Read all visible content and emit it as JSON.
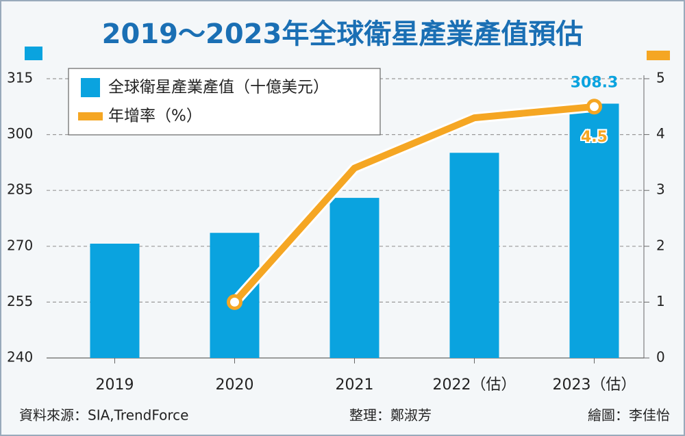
{
  "chart_data": {
    "type": "bar_line",
    "title": "2019～2023年全球衛星產業產值預估",
    "categories": [
      "2019",
      "2020",
      "2021",
      "2022（估）",
      "2023（估）"
    ],
    "series": [
      {
        "name": "全球衛星產業產值（十億美元）",
        "color": "#0aa3df",
        "type": "bar",
        "values": [
          270.7,
          273.6,
          283.0,
          295.1,
          308.3
        ],
        "value_labels": [
          null,
          null,
          null,
          null,
          "308.3"
        ]
      },
      {
        "name": "年增率（%）",
        "color": "#f5a623",
        "type": "line",
        "axis": "y2",
        "values": [
          null,
          1.0,
          3.4,
          4.3,
          4.5
        ],
        "value_labels": [
          null,
          null,
          null,
          null,
          "4.5"
        ]
      }
    ],
    "ylim": [
      240,
      315
    ],
    "yticks": [
      240,
      255,
      270,
      285,
      300,
      315
    ],
    "y2lim": [
      0,
      5
    ],
    "y2ticks": [
      0,
      1,
      2,
      3,
      4,
      5
    ],
    "grid": true,
    "legend": "top-left",
    "source": "資料來源：SIA,TrendForce",
    "editor": "整理：鄭淑芳",
    "artist": "繪圖：李佳怡"
  }
}
